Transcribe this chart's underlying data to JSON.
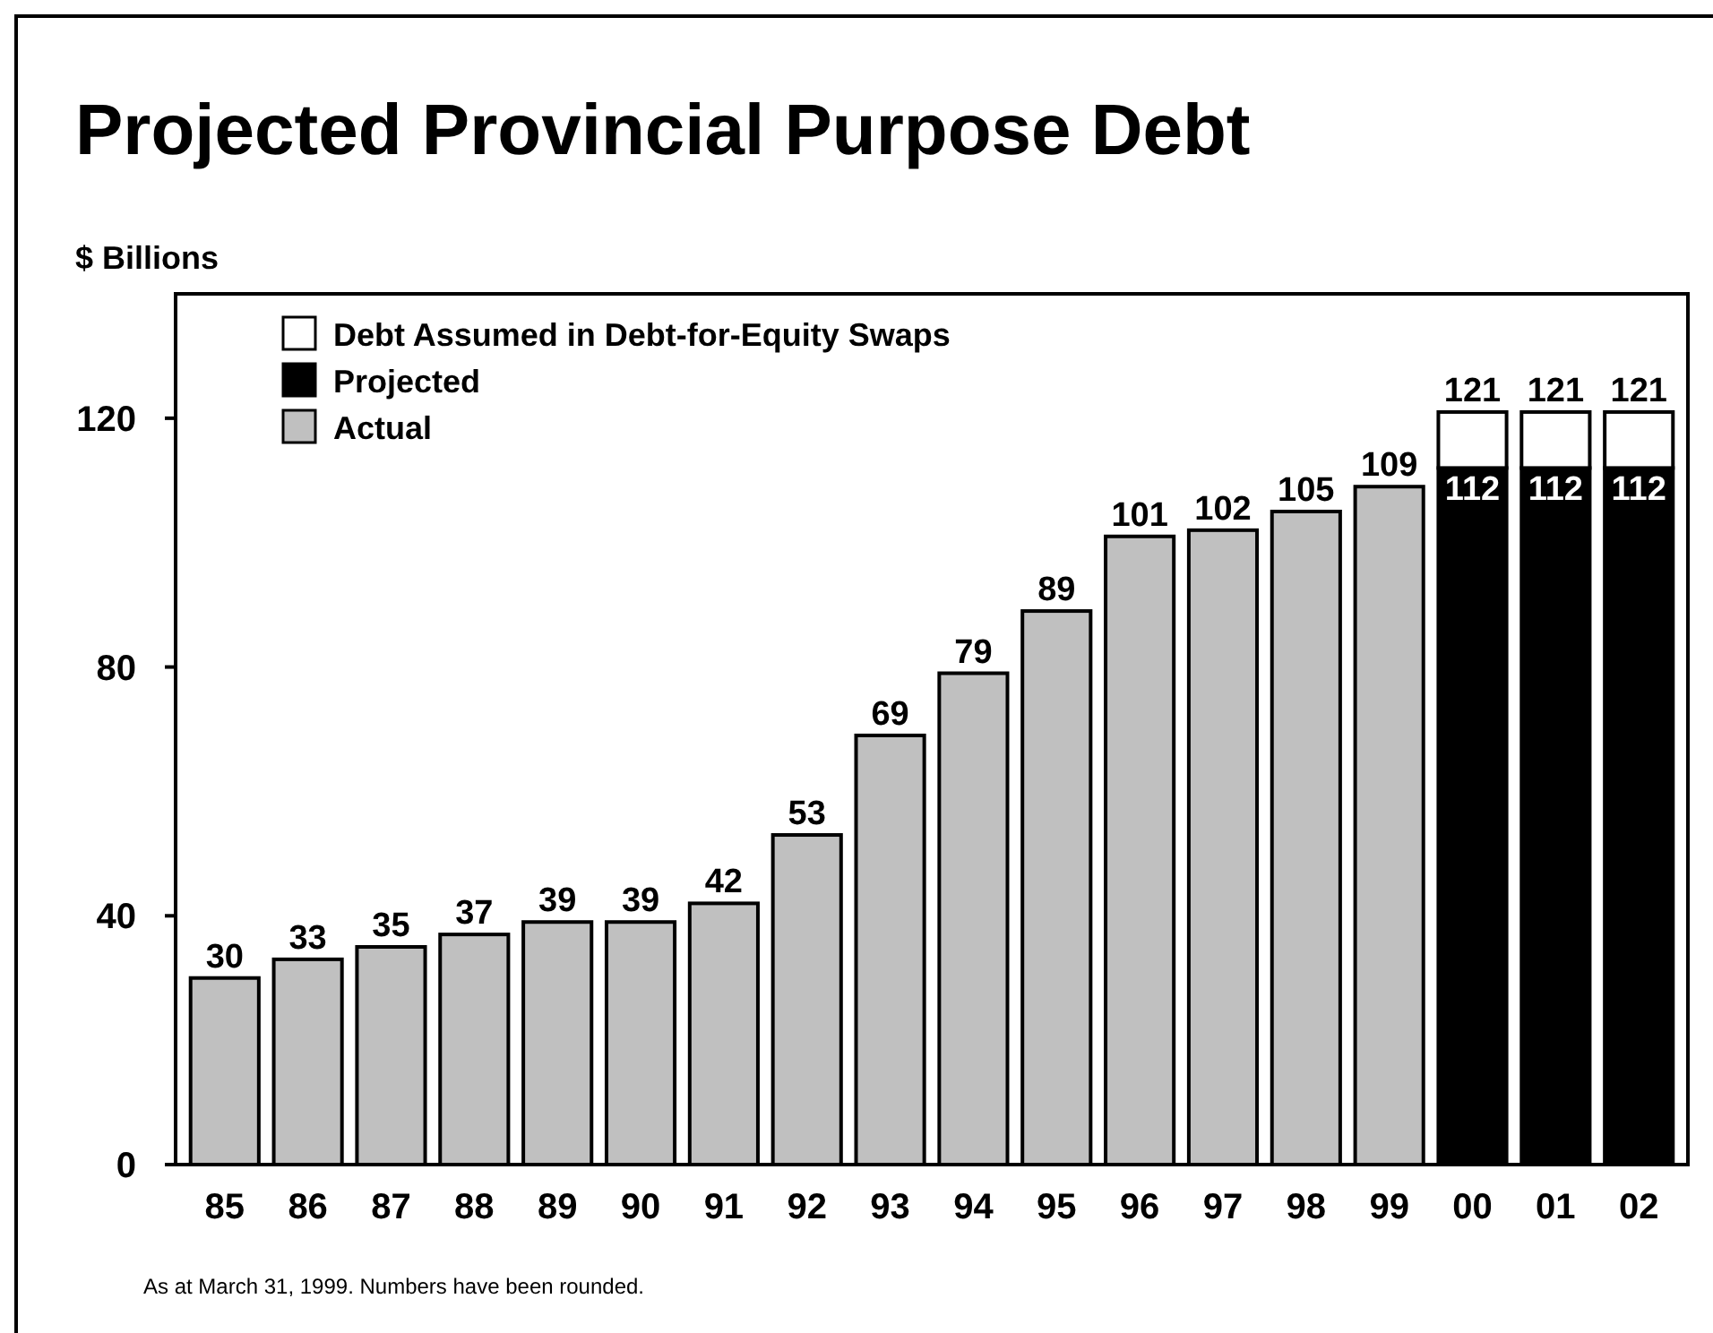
{
  "chart_data": {
    "type": "bar",
    "title": "Projected Provincial Purpose Debt",
    "ylabel": "$ Billions",
    "categories": [
      "85",
      "86",
      "87",
      "88",
      "89",
      "90",
      "91",
      "92",
      "93",
      "94",
      "95",
      "96",
      "97",
      "98",
      "99",
      "00",
      "01",
      "02"
    ],
    "stacked": true,
    "series": [
      {
        "name": "Actual",
        "color": "#c0c0c0",
        "values": [
          30,
          33,
          35,
          37,
          39,
          39,
          42,
          53,
          69,
          79,
          89,
          101,
          102,
          105,
          109,
          null,
          null,
          null
        ],
        "value_labels": [
          "30",
          "33",
          "35",
          "37",
          "39",
          "39",
          "42",
          "53",
          "69",
          "79",
          "89",
          "101",
          "102",
          "105",
          "109",
          null,
          null,
          null
        ]
      },
      {
        "name": "Projected",
        "color": "#000000",
        "values": [
          null,
          null,
          null,
          null,
          null,
          null,
          null,
          null,
          null,
          null,
          null,
          null,
          null,
          null,
          null,
          112,
          112,
          112
        ],
        "value_labels": [
          null,
          null,
          null,
          null,
          null,
          null,
          null,
          null,
          null,
          null,
          null,
          null,
          null,
          null,
          null,
          "112",
          "112",
          "112"
        ]
      },
      {
        "name": "Debt Assumed in Debt-for-Equity Swaps",
        "color": "#ffffff",
        "values": [
          null,
          null,
          null,
          null,
          null,
          null,
          null,
          null,
          null,
          null,
          null,
          null,
          null,
          null,
          null,
          9,
          9,
          9
        ]
      }
    ],
    "totals": [
      null,
      null,
      null,
      null,
      null,
      null,
      null,
      null,
      null,
      null,
      null,
      null,
      null,
      null,
      null,
      "121",
      "121",
      "121"
    ],
    "ylim": [
      0,
      140
    ],
    "yticks": [
      0,
      40,
      80,
      120
    ],
    "grid": false,
    "legend": "top left",
    "annotations": [
      "As at March 31, 1999.  Numbers have been rounded."
    ]
  }
}
